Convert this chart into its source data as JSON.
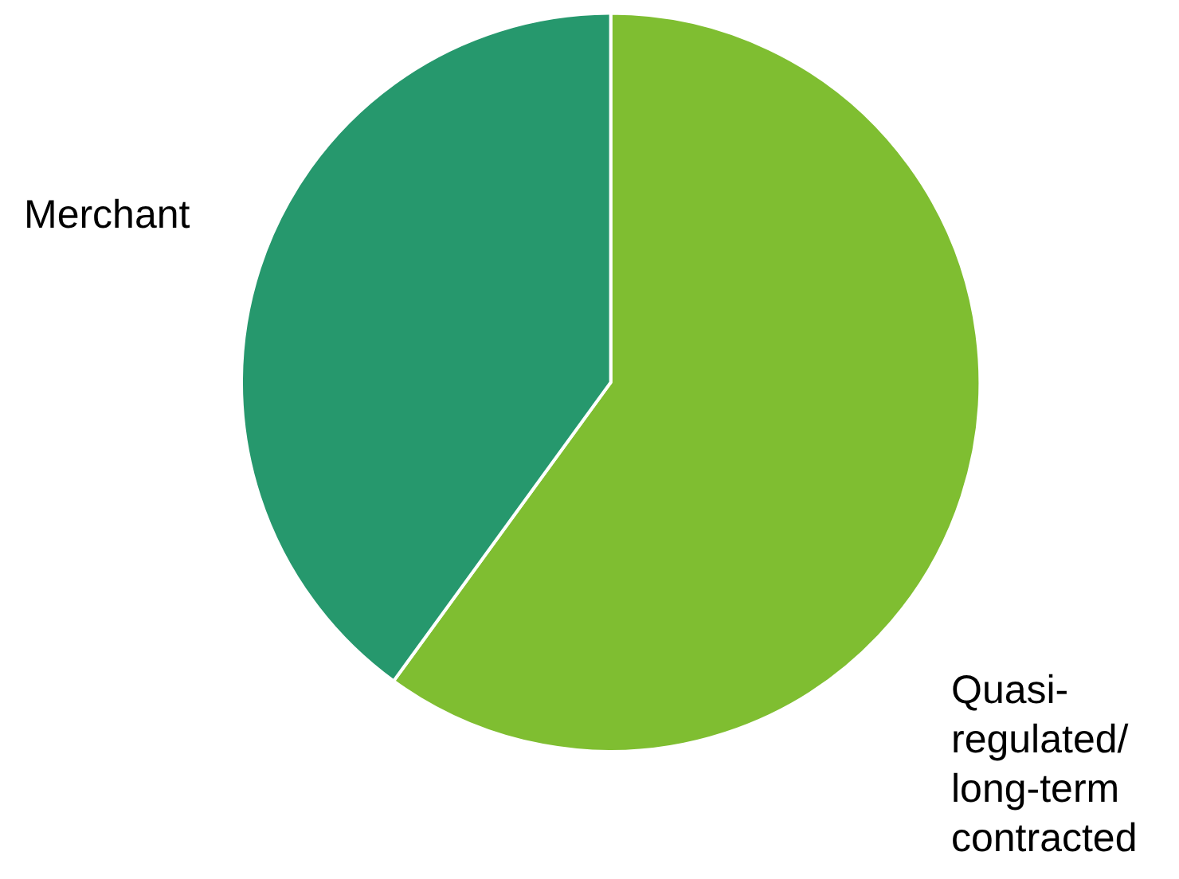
{
  "chart_data": {
    "type": "pie",
    "categories": [
      "Quasi-regulated/long-term contracted",
      "Merchant"
    ],
    "values": [
      60,
      40
    ],
    "colors": [
      "#7fbe31",
      "#26986d"
    ],
    "legend": false
  }
}
